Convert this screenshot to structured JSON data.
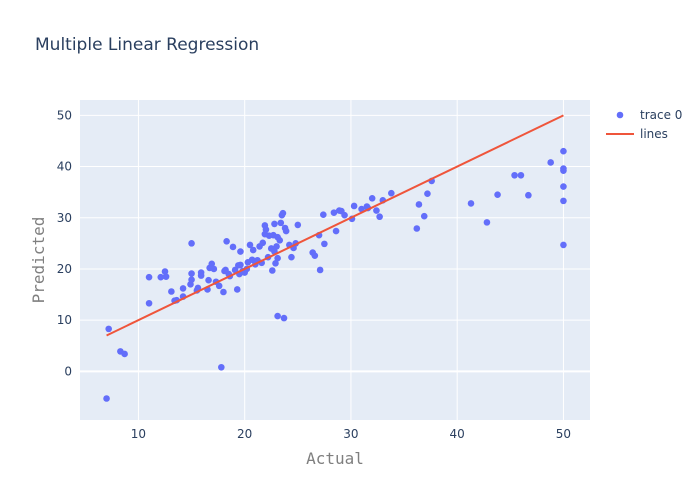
{
  "chart_data": {
    "type": "scatter",
    "title": "Multiple Linear Regression",
    "xlabel": "Actual",
    "ylabel": "Predicted",
    "xlim": [
      4.5,
      52.5
    ],
    "ylim": [
      -9.5,
      53
    ],
    "xticks": [
      10,
      20,
      30,
      40,
      50
    ],
    "yticks": [
      0,
      10,
      20,
      30,
      40,
      50
    ],
    "grid": true,
    "legend_position": "top-right",
    "colors": {
      "points": "#636efa",
      "line": "#ef553b",
      "plot_bg": "#e5ecf6",
      "grid": "#ffffff"
    },
    "series": [
      {
        "name": "trace 0",
        "mode": "markers",
        "points": [
          [
            7.0,
            -5.3
          ],
          [
            7.2,
            8.3
          ],
          [
            8.3,
            3.9
          ],
          [
            8.7,
            3.4
          ],
          [
            11.0,
            13.3
          ],
          [
            11.0,
            18.4
          ],
          [
            12.1,
            18.4
          ],
          [
            12.5,
            19.5
          ],
          [
            12.6,
            18.5
          ],
          [
            13.1,
            15.6
          ],
          [
            13.4,
            13.8
          ],
          [
            13.6,
            13.9
          ],
          [
            14.2,
            14.6
          ],
          [
            14.2,
            16.2
          ],
          [
            14.9,
            17.0
          ],
          [
            15.0,
            17.9
          ],
          [
            15.0,
            19.1
          ],
          [
            15.0,
            25.0
          ],
          [
            15.5,
            15.8
          ],
          [
            15.6,
            16.3
          ],
          [
            15.9,
            18.7
          ],
          [
            15.9,
            19.3
          ],
          [
            16.5,
            16.0
          ],
          [
            16.6,
            17.8
          ],
          [
            16.7,
            20.2
          ],
          [
            16.9,
            21.0
          ],
          [
            17.1,
            20.0
          ],
          [
            17.3,
            17.5
          ],
          [
            17.6,
            16.7
          ],
          [
            17.8,
            0.8
          ],
          [
            18.0,
            15.5
          ],
          [
            18.1,
            19.6
          ],
          [
            18.2,
            19.8
          ],
          [
            18.3,
            25.4
          ],
          [
            18.5,
            19.0
          ],
          [
            18.6,
            18.6
          ],
          [
            18.9,
            24.3
          ],
          [
            19.1,
            19.8
          ],
          [
            19.3,
            16.0
          ],
          [
            19.4,
            20.7
          ],
          [
            19.5,
            19.0
          ],
          [
            19.6,
            20.8
          ],
          [
            19.6,
            23.4
          ],
          [
            19.8,
            19.6
          ],
          [
            20.0,
            19.3
          ],
          [
            20.2,
            20.0
          ],
          [
            20.3,
            21.3
          ],
          [
            20.5,
            24.7
          ],
          [
            20.7,
            21.8
          ],
          [
            20.8,
            23.7
          ],
          [
            21.0,
            20.9
          ],
          [
            21.2,
            21.7
          ],
          [
            21.4,
            24.4
          ],
          [
            21.6,
            21.2
          ],
          [
            21.7,
            25.1
          ],
          [
            21.9,
            26.8
          ],
          [
            21.9,
            28.5
          ],
          [
            22.0,
            27.7
          ],
          [
            22.2,
            22.3
          ],
          [
            22.3,
            26.5
          ],
          [
            22.5,
            24.0
          ],
          [
            22.6,
            19.7
          ],
          [
            22.7,
            26.6
          ],
          [
            22.8,
            23.4
          ],
          [
            22.8,
            28.8
          ],
          [
            22.9,
            21.1
          ],
          [
            23.0,
            24.4
          ],
          [
            23.1,
            10.8
          ],
          [
            23.1,
            22.1
          ],
          [
            23.1,
            26.2
          ],
          [
            23.3,
            25.6
          ],
          [
            23.4,
            29.0
          ],
          [
            23.5,
            30.5
          ],
          [
            23.6,
            30.9
          ],
          [
            23.7,
            10.4
          ],
          [
            23.8,
            28.0
          ],
          [
            23.9,
            27.4
          ],
          [
            24.2,
            24.7
          ],
          [
            24.4,
            22.3
          ],
          [
            24.6,
            24.1
          ],
          [
            24.8,
            25.0
          ],
          [
            25.0,
            28.6
          ],
          [
            26.4,
            23.2
          ],
          [
            26.6,
            22.6
          ],
          [
            27.0,
            26.6
          ],
          [
            27.1,
            19.8
          ],
          [
            27.4,
            30.6
          ],
          [
            27.5,
            24.9
          ],
          [
            28.4,
            31.0
          ],
          [
            28.6,
            27.4
          ],
          [
            28.9,
            31.4
          ],
          [
            29.1,
            31.3
          ],
          [
            29.4,
            30.5
          ],
          [
            30.1,
            29.8
          ],
          [
            30.3,
            32.3
          ],
          [
            31.0,
            31.7
          ],
          [
            31.5,
            32.2
          ],
          [
            31.6,
            31.9
          ],
          [
            32.0,
            33.8
          ],
          [
            32.4,
            31.4
          ],
          [
            32.7,
            30.2
          ],
          [
            33.0,
            33.4
          ],
          [
            33.8,
            34.8
          ],
          [
            36.2,
            27.9
          ],
          [
            36.4,
            32.6
          ],
          [
            36.9,
            30.3
          ],
          [
            37.2,
            34.7
          ],
          [
            37.6,
            37.2
          ],
          [
            41.3,
            32.8
          ],
          [
            42.8,
            29.1
          ],
          [
            43.8,
            34.5
          ],
          [
            45.4,
            38.3
          ],
          [
            46.0,
            38.3
          ],
          [
            46.7,
            34.4
          ],
          [
            48.8,
            40.8
          ],
          [
            50.0,
            24.7
          ],
          [
            50.0,
            33.3
          ],
          [
            50.0,
            36.1
          ],
          [
            50.0,
            39.2
          ],
          [
            50.0,
            39.6
          ],
          [
            50.0,
            43.0
          ]
        ]
      },
      {
        "name": "lines",
        "mode": "lines",
        "points": [
          [
            7.0,
            7.0
          ],
          [
            50.0,
            50.0
          ]
        ]
      }
    ]
  }
}
